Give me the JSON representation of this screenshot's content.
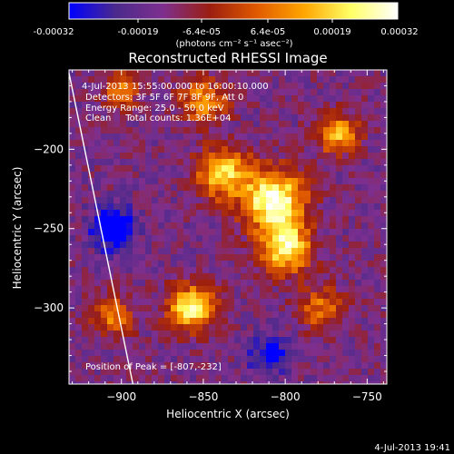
{
  "colorbar": {
    "tick_labels": [
      "-0.00032",
      "-0.00019",
      "-6.4e-05",
      "6.4e-05",
      "0.00019",
      "0.00032"
    ],
    "unit_label": "(photons cm⁻² s⁻¹ asec⁻²)",
    "range": [
      -0.00032,
      0.00032
    ],
    "colors": [
      "#0000ff",
      "#4b2a8c",
      "#7e2f8e",
      "#9b1e10",
      "#e05a00",
      "#ffa500",
      "#ffff66",
      "#ffffff"
    ]
  },
  "chart_data": {
    "type": "heatmap",
    "title": "Reconstructed RHESSI Image",
    "xlabel": "Heliocentric X (arcsec)",
    "ylabel": "Heliocentric Y (arcsec)",
    "xlim": [
      -932,
      -738
    ],
    "ylim": [
      -348,
      -150
    ],
    "x_ticks": [
      -900,
      -850,
      -800,
      -750
    ],
    "y_ticks": [
      -200,
      -250,
      -300
    ],
    "x_tick_labels": [
      "−900",
      "−850",
      "−800",
      "−750"
    ],
    "y_tick_labels": [
      "−200",
      "−250",
      "−300"
    ],
    "info_lines": [
      "4-Jul-2013 15:55:00.000 to 16:00:10.000",
      "Detectors: 3F 5F 6F 7F 8F 9F, Att 0",
      "Energy Range: 25.0 - 50.0 keV",
      "Clean     Total counts: 1.36E+04"
    ],
    "peak_label": "Position of Peak = [-807,-232]",
    "peak": [
      -807,
      -232
    ],
    "limb_line": [
      [
        -932,
        -152
      ],
      [
        -893,
        -348
      ]
    ],
    "sources": [
      {
        "x": -807,
        "y": -232,
        "sigma": 13,
        "amp": 1.0
      },
      {
        "x": -800,
        "y": -262,
        "sigma": 11,
        "amp": 0.85
      },
      {
        "x": -838,
        "y": -215,
        "sigma": 11,
        "amp": 0.75
      },
      {
        "x": -857,
        "y": -300,
        "sigma": 10,
        "amp": 0.85
      },
      {
        "x": -768,
        "y": -190,
        "sigma": 9,
        "amp": 0.65
      },
      {
        "x": -850,
        "y": -170,
        "sigma": 10,
        "amp": 0.55
      },
      {
        "x": -905,
        "y": -305,
        "sigma": 9,
        "amp": 0.5
      },
      {
        "x": -778,
        "y": -300,
        "sigma": 10,
        "amp": 0.45
      },
      {
        "x": -900,
        "y": -162,
        "sigma": 8,
        "amp": 0.5
      },
      {
        "x": -905,
        "y": -250,
        "sigma": 9,
        "amp": -0.7
      },
      {
        "x": -810,
        "y": -330,
        "sigma": 9,
        "amp": -0.4
      }
    ]
  },
  "footer": {
    "timestamp": "4-Jul-2013 19:41"
  }
}
